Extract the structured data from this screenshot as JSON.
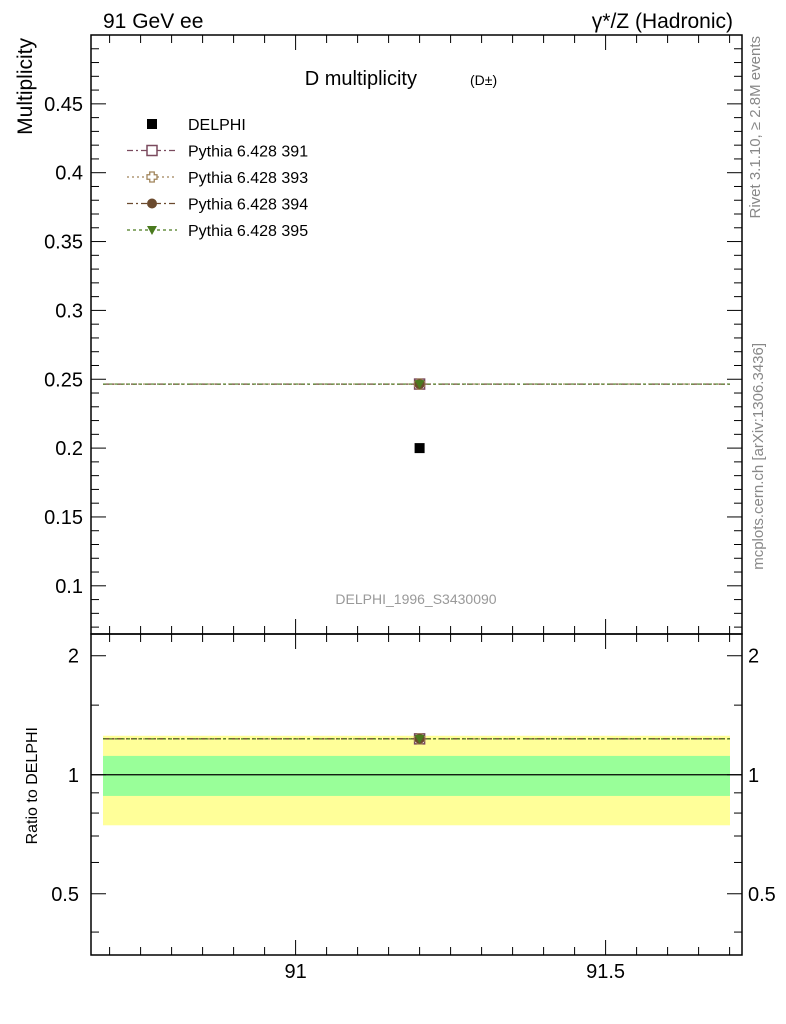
{
  "header": {
    "left": "91 GeV ee",
    "right": "γ*/Z (Hadronic)"
  },
  "side_labels": {
    "top": "Rivet 3.1.10, ≥ 2.8M events",
    "bottom": "mcplots.cern.ch [arXiv:1306.3436]"
  },
  "chart_data": {
    "type": "scatter",
    "title": "D multiplicity",
    "title_sub": "(D±)",
    "ylabel": "Multiplicity",
    "ratio_ylabel": "Ratio to DELPHI",
    "watermark": "DELPHI_1996_S3430090",
    "xlim": [
      90.67,
      91.72
    ],
    "ylim": [
      0.065,
      0.5
    ],
    "ratio_ylim": [
      0.35,
      2.27
    ],
    "x_ticks": [
      91,
      91.5
    ],
    "x_tick_labels": [
      "91",
      "91.5"
    ],
    "y_ticks": [
      0.1,
      0.15,
      0.2,
      0.25,
      0.3,
      0.35,
      0.4,
      0.45
    ],
    "y_tick_labels": [
      "0.1",
      "0.15",
      "0.2",
      "0.25",
      "0.3",
      "0.35",
      "0.4",
      "0.45"
    ],
    "ratio_ticks": [
      0.5,
      1,
      2
    ],
    "ratio_tick_labels": [
      "0.5",
      "1",
      "2"
    ],
    "data": {
      "name": "DELPHI",
      "x": 91.2,
      "y": 0.2,
      "color": "#000000"
    },
    "band": {
      "inner": [
        0.884,
        1.116
      ],
      "outer": [
        0.745,
        1.255
      ],
      "inner_color": "#99ff99",
      "outer_color": "#ffff99"
    },
    "series": [
      {
        "name": "Pythia 6.428 391",
        "value": 0.2465,
        "ratio": 1.2325,
        "marker": "open-square",
        "color": "#7a4a5e"
      },
      {
        "name": "Pythia 6.428 393",
        "value": 0.2465,
        "ratio": 1.2325,
        "marker": "open-cross",
        "color": "#a0845a"
      },
      {
        "name": "Pythia 6.428 394",
        "value": 0.2465,
        "ratio": 1.2325,
        "marker": "filled-circle",
        "color": "#6b4a2e"
      },
      {
        "name": "Pythia 6.428 395",
        "value": 0.2465,
        "ratio": 1.2325,
        "marker": "filled-triangle-down",
        "color": "#4a7a1e"
      }
    ],
    "grid": false,
    "legend": "top-left"
  }
}
